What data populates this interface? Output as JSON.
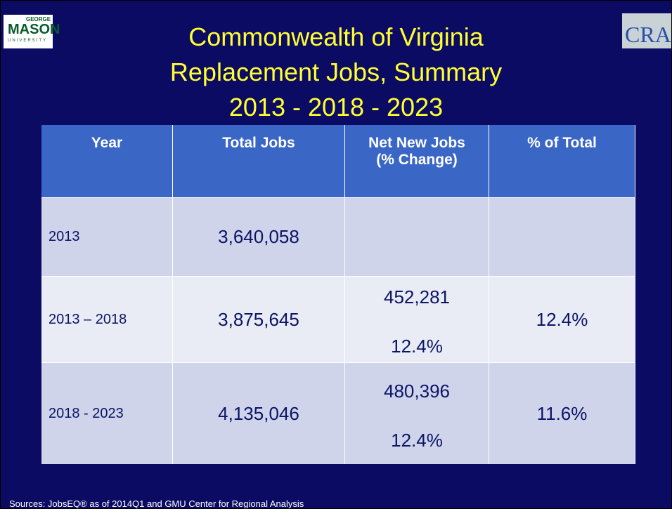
{
  "header": {
    "title": [
      "Commonwealth of Virginia",
      "Replacement Jobs, Summary",
      "2013 - 2018 - 2023"
    ],
    "logo_left": [
      "GEORGE",
      "MASON",
      "UNIVERSITY"
    ],
    "logo_right": "CRA"
  },
  "table": {
    "columns": [
      [
        "Year"
      ],
      [
        "Total Jobs"
      ],
      [
        "Net New Jobs",
        "(% Change)"
      ],
      [
        "% of Total"
      ]
    ],
    "rows": [
      {
        "year": "2013",
        "total": "3,640,058"
      },
      {
        "year": "2013 – 2018",
        "total": "3,875,645",
        "net_new": [
          "452,281",
          "12.4%"
        ],
        "share": "12.4%"
      },
      {
        "year": "2018 - 2023",
        "total": "4,135,046",
        "net_new": [
          "480,396",
          "12.4%"
        ],
        "share": "11.6%"
      }
    ]
  },
  "footer": {
    "sources": "Sources: JobsEQ® as of 2014Q1 and GMU Center for Regional Analysis"
  }
}
